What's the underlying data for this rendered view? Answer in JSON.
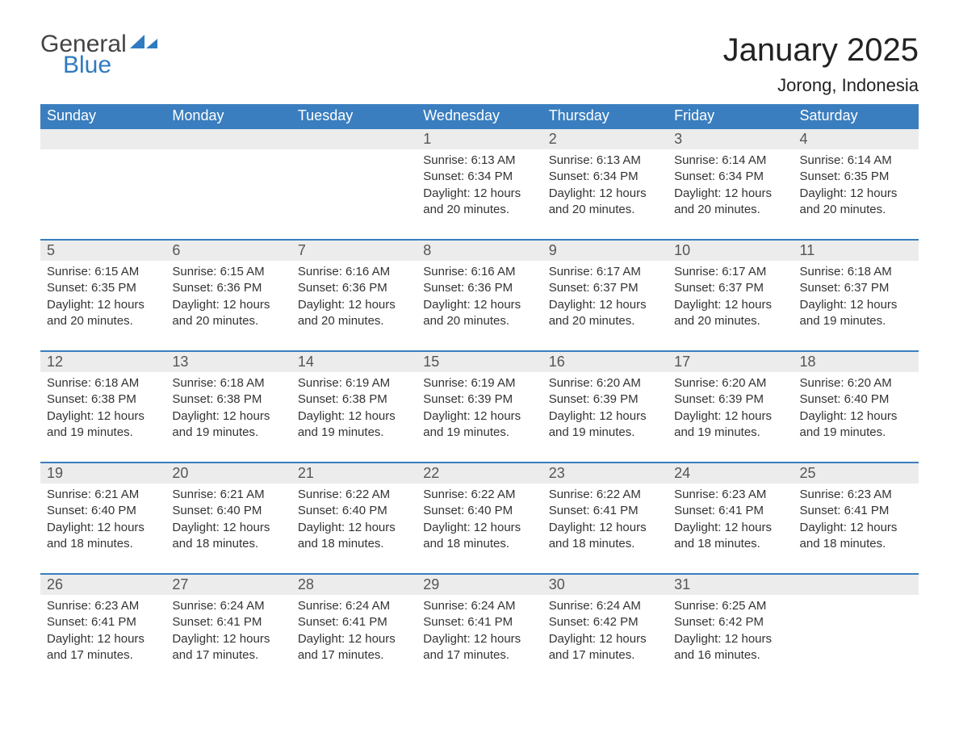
{
  "brand": {
    "general": "General",
    "blue": "Blue"
  },
  "title": "January 2025",
  "location": "Jorong, Indonesia",
  "colors": {
    "header_bg": "#3a7ebf",
    "header_text": "#ffffff",
    "row_border": "#3a7ebf",
    "daynum_bg": "#ececec",
    "text": "#333333",
    "logo_blue": "#2f7ac0"
  },
  "weekday_headers": [
    "Sunday",
    "Monday",
    "Tuesday",
    "Wednesday",
    "Thursday",
    "Friday",
    "Saturday"
  ],
  "weeks": [
    [
      null,
      null,
      null,
      {
        "day": "1",
        "sunrise": "6:13 AM",
        "sunset": "6:34 PM",
        "daylight": "12 hours and 20 minutes."
      },
      {
        "day": "2",
        "sunrise": "6:13 AM",
        "sunset": "6:34 PM",
        "daylight": "12 hours and 20 minutes."
      },
      {
        "day": "3",
        "sunrise": "6:14 AM",
        "sunset": "6:34 PM",
        "daylight": "12 hours and 20 minutes."
      },
      {
        "day": "4",
        "sunrise": "6:14 AM",
        "sunset": "6:35 PM",
        "daylight": "12 hours and 20 minutes."
      }
    ],
    [
      {
        "day": "5",
        "sunrise": "6:15 AM",
        "sunset": "6:35 PM",
        "daylight": "12 hours and 20 minutes."
      },
      {
        "day": "6",
        "sunrise": "6:15 AM",
        "sunset": "6:36 PM",
        "daylight": "12 hours and 20 minutes."
      },
      {
        "day": "7",
        "sunrise": "6:16 AM",
        "sunset": "6:36 PM",
        "daylight": "12 hours and 20 minutes."
      },
      {
        "day": "8",
        "sunrise": "6:16 AM",
        "sunset": "6:36 PM",
        "daylight": "12 hours and 20 minutes."
      },
      {
        "day": "9",
        "sunrise": "6:17 AM",
        "sunset": "6:37 PM",
        "daylight": "12 hours and 20 minutes."
      },
      {
        "day": "10",
        "sunrise": "6:17 AM",
        "sunset": "6:37 PM",
        "daylight": "12 hours and 20 minutes."
      },
      {
        "day": "11",
        "sunrise": "6:18 AM",
        "sunset": "6:37 PM",
        "daylight": "12 hours and 19 minutes."
      }
    ],
    [
      {
        "day": "12",
        "sunrise": "6:18 AM",
        "sunset": "6:38 PM",
        "daylight": "12 hours and 19 minutes."
      },
      {
        "day": "13",
        "sunrise": "6:18 AM",
        "sunset": "6:38 PM",
        "daylight": "12 hours and 19 minutes."
      },
      {
        "day": "14",
        "sunrise": "6:19 AM",
        "sunset": "6:38 PM",
        "daylight": "12 hours and 19 minutes."
      },
      {
        "day": "15",
        "sunrise": "6:19 AM",
        "sunset": "6:39 PM",
        "daylight": "12 hours and 19 minutes."
      },
      {
        "day": "16",
        "sunrise": "6:20 AM",
        "sunset": "6:39 PM",
        "daylight": "12 hours and 19 minutes."
      },
      {
        "day": "17",
        "sunrise": "6:20 AM",
        "sunset": "6:39 PM",
        "daylight": "12 hours and 19 minutes."
      },
      {
        "day": "18",
        "sunrise": "6:20 AM",
        "sunset": "6:40 PM",
        "daylight": "12 hours and 19 minutes."
      }
    ],
    [
      {
        "day": "19",
        "sunrise": "6:21 AM",
        "sunset": "6:40 PM",
        "daylight": "12 hours and 18 minutes."
      },
      {
        "day": "20",
        "sunrise": "6:21 AM",
        "sunset": "6:40 PM",
        "daylight": "12 hours and 18 minutes."
      },
      {
        "day": "21",
        "sunrise": "6:22 AM",
        "sunset": "6:40 PM",
        "daylight": "12 hours and 18 minutes."
      },
      {
        "day": "22",
        "sunrise": "6:22 AM",
        "sunset": "6:40 PM",
        "daylight": "12 hours and 18 minutes."
      },
      {
        "day": "23",
        "sunrise": "6:22 AM",
        "sunset": "6:41 PM",
        "daylight": "12 hours and 18 minutes."
      },
      {
        "day": "24",
        "sunrise": "6:23 AM",
        "sunset": "6:41 PM",
        "daylight": "12 hours and 18 minutes."
      },
      {
        "day": "25",
        "sunrise": "6:23 AM",
        "sunset": "6:41 PM",
        "daylight": "12 hours and 18 minutes."
      }
    ],
    [
      {
        "day": "26",
        "sunrise": "6:23 AM",
        "sunset": "6:41 PM",
        "daylight": "12 hours and 17 minutes."
      },
      {
        "day": "27",
        "sunrise": "6:24 AM",
        "sunset": "6:41 PM",
        "daylight": "12 hours and 17 minutes."
      },
      {
        "day": "28",
        "sunrise": "6:24 AM",
        "sunset": "6:41 PM",
        "daylight": "12 hours and 17 minutes."
      },
      {
        "day": "29",
        "sunrise": "6:24 AM",
        "sunset": "6:41 PM",
        "daylight": "12 hours and 17 minutes."
      },
      {
        "day": "30",
        "sunrise": "6:24 AM",
        "sunset": "6:42 PM",
        "daylight": "12 hours and 17 minutes."
      },
      {
        "day": "31",
        "sunrise": "6:25 AM",
        "sunset": "6:42 PM",
        "daylight": "12 hours and 16 minutes."
      },
      null
    ]
  ],
  "labels": {
    "sunrise": "Sunrise: ",
    "sunset": "Sunset: ",
    "daylight": "Daylight: "
  }
}
